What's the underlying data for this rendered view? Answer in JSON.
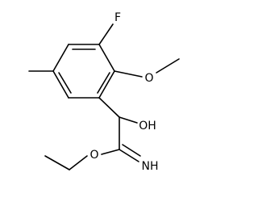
{
  "atoms": {
    "fluoro": "F",
    "methoxy_oxygen": "O",
    "hydroxyl": "OH",
    "ester_oxygen": "O",
    "imine": "NH"
  }
}
